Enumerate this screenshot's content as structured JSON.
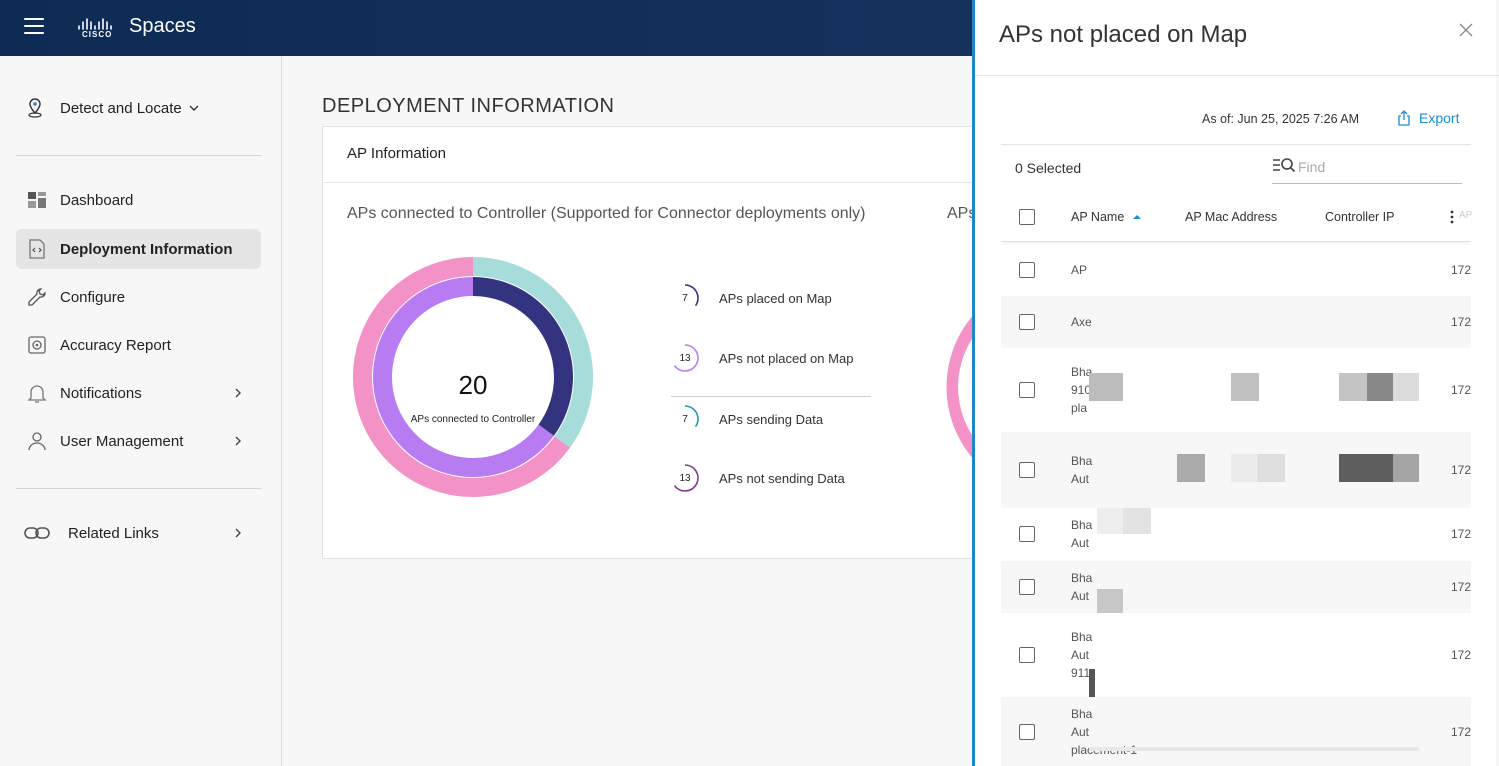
{
  "app": {
    "brand": "CISCO",
    "name": "Spaces"
  },
  "sidebar": {
    "context": "Detect and Locate",
    "items": [
      {
        "label": "Dashboard",
        "icon": "dashboard-icon"
      },
      {
        "label": "Deployment Information",
        "icon": "deployment-icon",
        "active": true
      },
      {
        "label": "Configure",
        "icon": "wrench-icon"
      },
      {
        "label": "Accuracy Report",
        "icon": "accuracy-icon"
      },
      {
        "label": "Notifications",
        "icon": "bell-icon",
        "has_submenu": true
      },
      {
        "label": "User Management",
        "icon": "user-icon",
        "has_submenu": true
      }
    ],
    "related": "Related Links"
  },
  "main": {
    "title": "DEPLOYMENT INFORMATION",
    "card_title": "AP Information",
    "subtitle": "APs connected to Controller (Supported for Connector deployments only)",
    "subtitle2": "APs",
    "donut": {
      "total": "20",
      "caption": "APs connected to Controller",
      "outer": {
        "placed": 7,
        "not_placed": 13
      },
      "inner": {
        "sending": 7,
        "not_sending": 13
      },
      "colors": {
        "placed": "#a6dcd9",
        "not_placed": "#f292c7",
        "sending": "#34337f",
        "not_sending": "#b77cf2"
      }
    },
    "legend": [
      {
        "count": "7",
        "label": "APs placed on Map",
        "color": "#34337f"
      },
      {
        "count": "13",
        "label": "APs not placed on Map",
        "color": "#b77cf2"
      },
      {
        "count": "7",
        "label": "APs sending Data",
        "color": "#1aa0a8"
      },
      {
        "count": "13",
        "label": "APs not sending Data",
        "color": "#7b3a8f"
      }
    ]
  },
  "panel": {
    "title": "APs not placed on Map",
    "as_of": "As of: Jun 25, 2025 7:26 AM",
    "export": "Export",
    "selected": "0 Selected",
    "find_placeholder": "Find",
    "columns": [
      "AP Name",
      "AP Mac Address",
      "Controller IP",
      "AP"
    ],
    "rows": [
      {
        "name": [
          "AP"
        ],
        "ip": "172"
      },
      {
        "name": [
          "Axe"
        ],
        "ip": "172"
      },
      {
        "name": [
          "Bha",
          "910",
          "pla"
        ],
        "ip": "172"
      },
      {
        "name": [
          "Bha",
          "Aut"
        ],
        "ip": "172"
      },
      {
        "name": [
          "Bha",
          "Aut"
        ],
        "ip": "172"
      },
      {
        "name": [
          "Bha",
          "Aut"
        ],
        "ip": "172"
      },
      {
        "name": [
          "Bha",
          "Aut",
          "911"
        ],
        "ip": "172"
      },
      {
        "name": [
          "Bha",
          "Aut",
          "placement-1"
        ],
        "ip": "172"
      }
    ]
  }
}
